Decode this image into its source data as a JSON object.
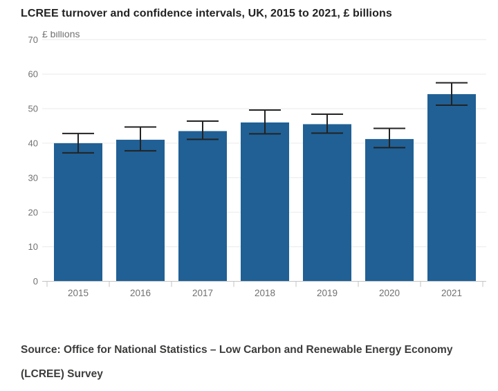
{
  "title": "LCREE turnover and confidence intervals, UK, 2015 to 2021, £ billions",
  "source": "Source: Office for National Statistics – Low Carbon and Renewable Energy Economy (LCREE) Survey",
  "colors": {
    "bar": "#206095",
    "error_bar": "#222222",
    "gridline": "#eaeaea",
    "axis_line": "#c3c3c3",
    "tick_label": "#707070",
    "title_text": "#222222",
    "source_text": "#3c3c3b",
    "background": "#ffffff"
  },
  "chart_data": {
    "type": "bar",
    "title": "LCREE turnover and confidence intervals, UK, 2015 to 2021, £ billions",
    "xlabel": "",
    "ylabel": "£ billions",
    "ylim": [
      0,
      70
    ],
    "yticks": [
      0,
      10,
      20,
      30,
      40,
      50,
      60,
      70
    ],
    "grid": true,
    "legend": "none",
    "categories": [
      "2015",
      "2016",
      "2017",
      "2018",
      "2019",
      "2020",
      "2021"
    ],
    "series": [
      {
        "name": "LCREE turnover",
        "values": [
          40.0,
          41.0,
          43.5,
          46.0,
          45.5,
          41.2,
          54.2
        ],
        "ci_lower": [
          37.2,
          37.8,
          41.1,
          42.7,
          42.9,
          38.7,
          51.0
        ],
        "ci_upper": [
          42.8,
          44.7,
          46.4,
          49.6,
          48.4,
          44.3,
          57.5
        ]
      }
    ]
  }
}
